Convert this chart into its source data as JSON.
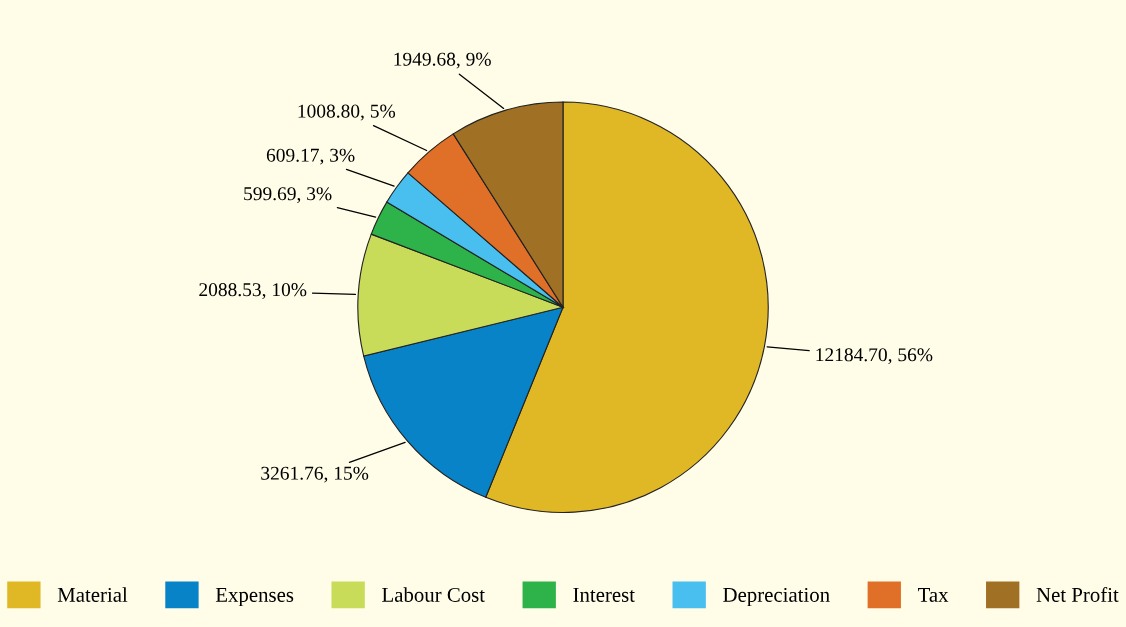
{
  "chart_data": {
    "type": "pie",
    "categories": [
      "Material",
      "Expenses",
      "Labour Cost",
      "Interest",
      "Depreciation",
      "Tax",
      "Net Profit"
    ],
    "values": [
      12184.7,
      3261.76,
      2088.53,
      599.69,
      609.17,
      1008.8,
      1949.68
    ],
    "colors": [
      "#e0b826",
      "#0883c8",
      "#c8dc5a",
      "#2db34a",
      "#48bfee",
      "#e07028",
      "#a07024"
    ],
    "value_labels": [
      "12184.70, 56%",
      "3261.76, 15%",
      "2088.53, 10%",
      "599.69, 3%",
      "609.17, 3%",
      "1008.80, 5%",
      "1949.68, 9%"
    ],
    "legend": "bottom"
  }
}
